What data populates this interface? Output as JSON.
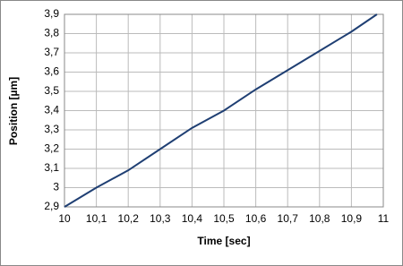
{
  "chart_data": {
    "type": "line",
    "x_label": "Time [sec]",
    "y_label": "Position [µm]",
    "x": [
      10,
      10.1,
      10.2,
      10.3,
      10.4,
      10.5,
      10.6,
      10.7,
      10.8,
      10.9,
      10.98
    ],
    "series": [
      {
        "name": "Position",
        "color": "#1f3f73",
        "values": [
          2.9,
          3.0,
          3.09,
          3.2,
          3.31,
          3.4,
          3.51,
          3.61,
          3.71,
          3.81,
          3.9
        ]
      }
    ],
    "xlim": [
      10,
      11
    ],
    "xticks": [
      10,
      {
        "value": 10.1,
        "label": "10,1"
      },
      {
        "value": 10.2,
        "label": "10,2"
      },
      {
        "value": 10.3,
        "label": "10,3"
      },
      {
        "value": 10.4,
        "label": "10,4"
      },
      {
        "value": 10.5,
        "label": "10,5"
      },
      {
        "value": 10.6,
        "label": "10,6"
      },
      {
        "value": 10.7,
        "label": "10,7"
      },
      {
        "value": 10.8,
        "label": "10,8"
      },
      {
        "value": 10.9,
        "label": "10,9"
      },
      11
    ],
    "ylim": [
      2.9,
      3.9
    ],
    "yticks": [
      {
        "value": 2.9,
        "label": "2,9"
      },
      3,
      {
        "value": 3.1,
        "label": "3,1"
      },
      {
        "value": 3.2,
        "label": "3,2"
      },
      {
        "value": 3.3,
        "label": "3,3"
      },
      {
        "value": 3.4,
        "label": "3,4"
      },
      {
        "value": 3.5,
        "label": "3,5"
      },
      {
        "value": 3.6,
        "label": "3,6"
      },
      {
        "value": 3.7,
        "label": "3,7"
      },
      {
        "value": 3.8,
        "label": "3,8"
      },
      {
        "value": 3.9,
        "label": "3,9"
      }
    ],
    "grid": true
  }
}
